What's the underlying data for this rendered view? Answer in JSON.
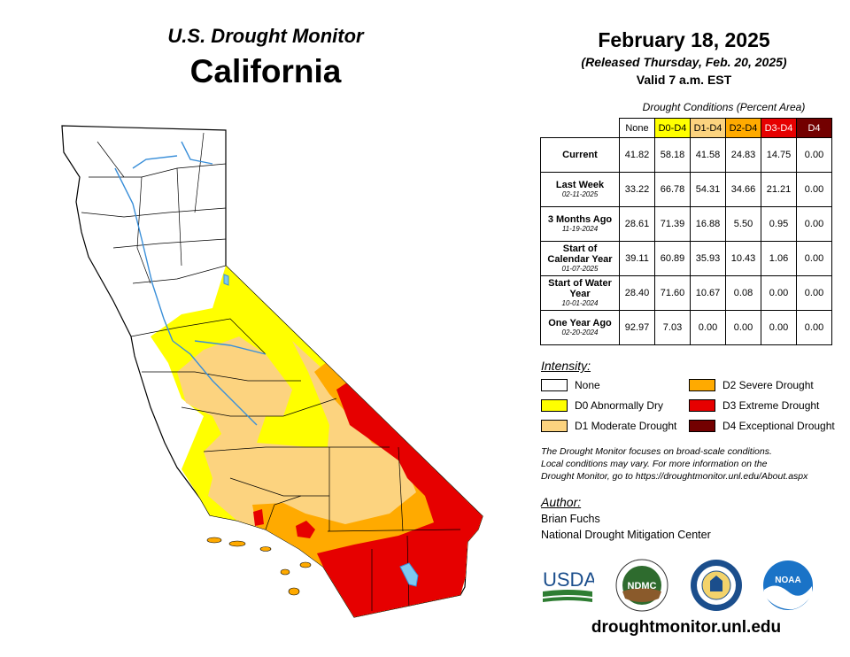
{
  "header": {
    "subtitle": "U.S. Drought Monitor",
    "state": "California",
    "date": "February 18, 2025",
    "released": "(Released Thursday, Feb. 20, 2025)",
    "valid": "Valid 7 a.m. EST"
  },
  "table": {
    "caption": "Drought Conditions (Percent Area)",
    "columns": [
      {
        "label": "None",
        "color": "#ffffff",
        "text_color": "#000000"
      },
      {
        "label": "D0-D4",
        "color": "#ffff00",
        "text_color": "#000000"
      },
      {
        "label": "D1-D4",
        "color": "#fcd37f",
        "text_color": "#000000"
      },
      {
        "label": "D2-D4",
        "color": "#ffaa00",
        "text_color": "#000000"
      },
      {
        "label": "D3-D4",
        "color": "#e60000",
        "text_color": "#ffffff"
      },
      {
        "label": "D4",
        "color": "#730000",
        "text_color": "#ffffff"
      }
    ],
    "rows": [
      {
        "label": "Current",
        "date": "",
        "values": [
          "41.82",
          "58.18",
          "41.58",
          "24.83",
          "14.75",
          "0.00"
        ]
      },
      {
        "label": "Last Week",
        "date": "02-11-2025",
        "values": [
          "33.22",
          "66.78",
          "54.31",
          "34.66",
          "21.21",
          "0.00"
        ]
      },
      {
        "label": "3 Months Ago",
        "date": "11-19-2024",
        "values": [
          "28.61",
          "71.39",
          "16.88",
          "5.50",
          "0.95",
          "0.00"
        ]
      },
      {
        "label": "Start of Calendar Year",
        "date": "01-07-2025",
        "values": [
          "39.11",
          "60.89",
          "35.93",
          "10.43",
          "1.06",
          "0.00"
        ]
      },
      {
        "label": "Start of Water Year",
        "date": "10-01-2024",
        "values": [
          "28.40",
          "71.60",
          "10.67",
          "0.08",
          "0.00",
          "0.00"
        ]
      },
      {
        "label": "One Year Ago",
        "date": "02-20-2024",
        "values": [
          "92.97",
          "7.03",
          "0.00",
          "0.00",
          "0.00",
          "0.00"
        ]
      }
    ]
  },
  "legend": {
    "title": "Intensity:",
    "items": [
      {
        "label": "None",
        "color": "#ffffff"
      },
      {
        "label": "D0 Abnormally Dry",
        "color": "#ffff00"
      },
      {
        "label": "D1 Moderate Drought",
        "color": "#fcd37f"
      },
      {
        "label": "D2 Severe Drought",
        "color": "#ffaa00"
      },
      {
        "label": "D3 Extreme Drought",
        "color": "#e60000"
      },
      {
        "label": "D4 Exceptional Drought",
        "color": "#730000"
      }
    ]
  },
  "note": {
    "line1": "The Drought Monitor focuses on broad-scale conditions.",
    "line2": "Local conditions may vary. For more information on the",
    "line3": "Drought Monitor, go to https://droughtmonitor.unl.edu/About.aspx"
  },
  "author": {
    "title": "Author:",
    "name": "Brian Fuchs",
    "org": "National Drought Mitigation Center"
  },
  "logos": {
    "usda": "USDA",
    "ndmc": "NDMC",
    "noaa": "NOAA"
  },
  "footer_url": "droughtmonitor.unl.edu",
  "map": {
    "water_color": "#7ec8f0",
    "river_color": "#3a8fd9",
    "boundary_color": "#000000"
  }
}
